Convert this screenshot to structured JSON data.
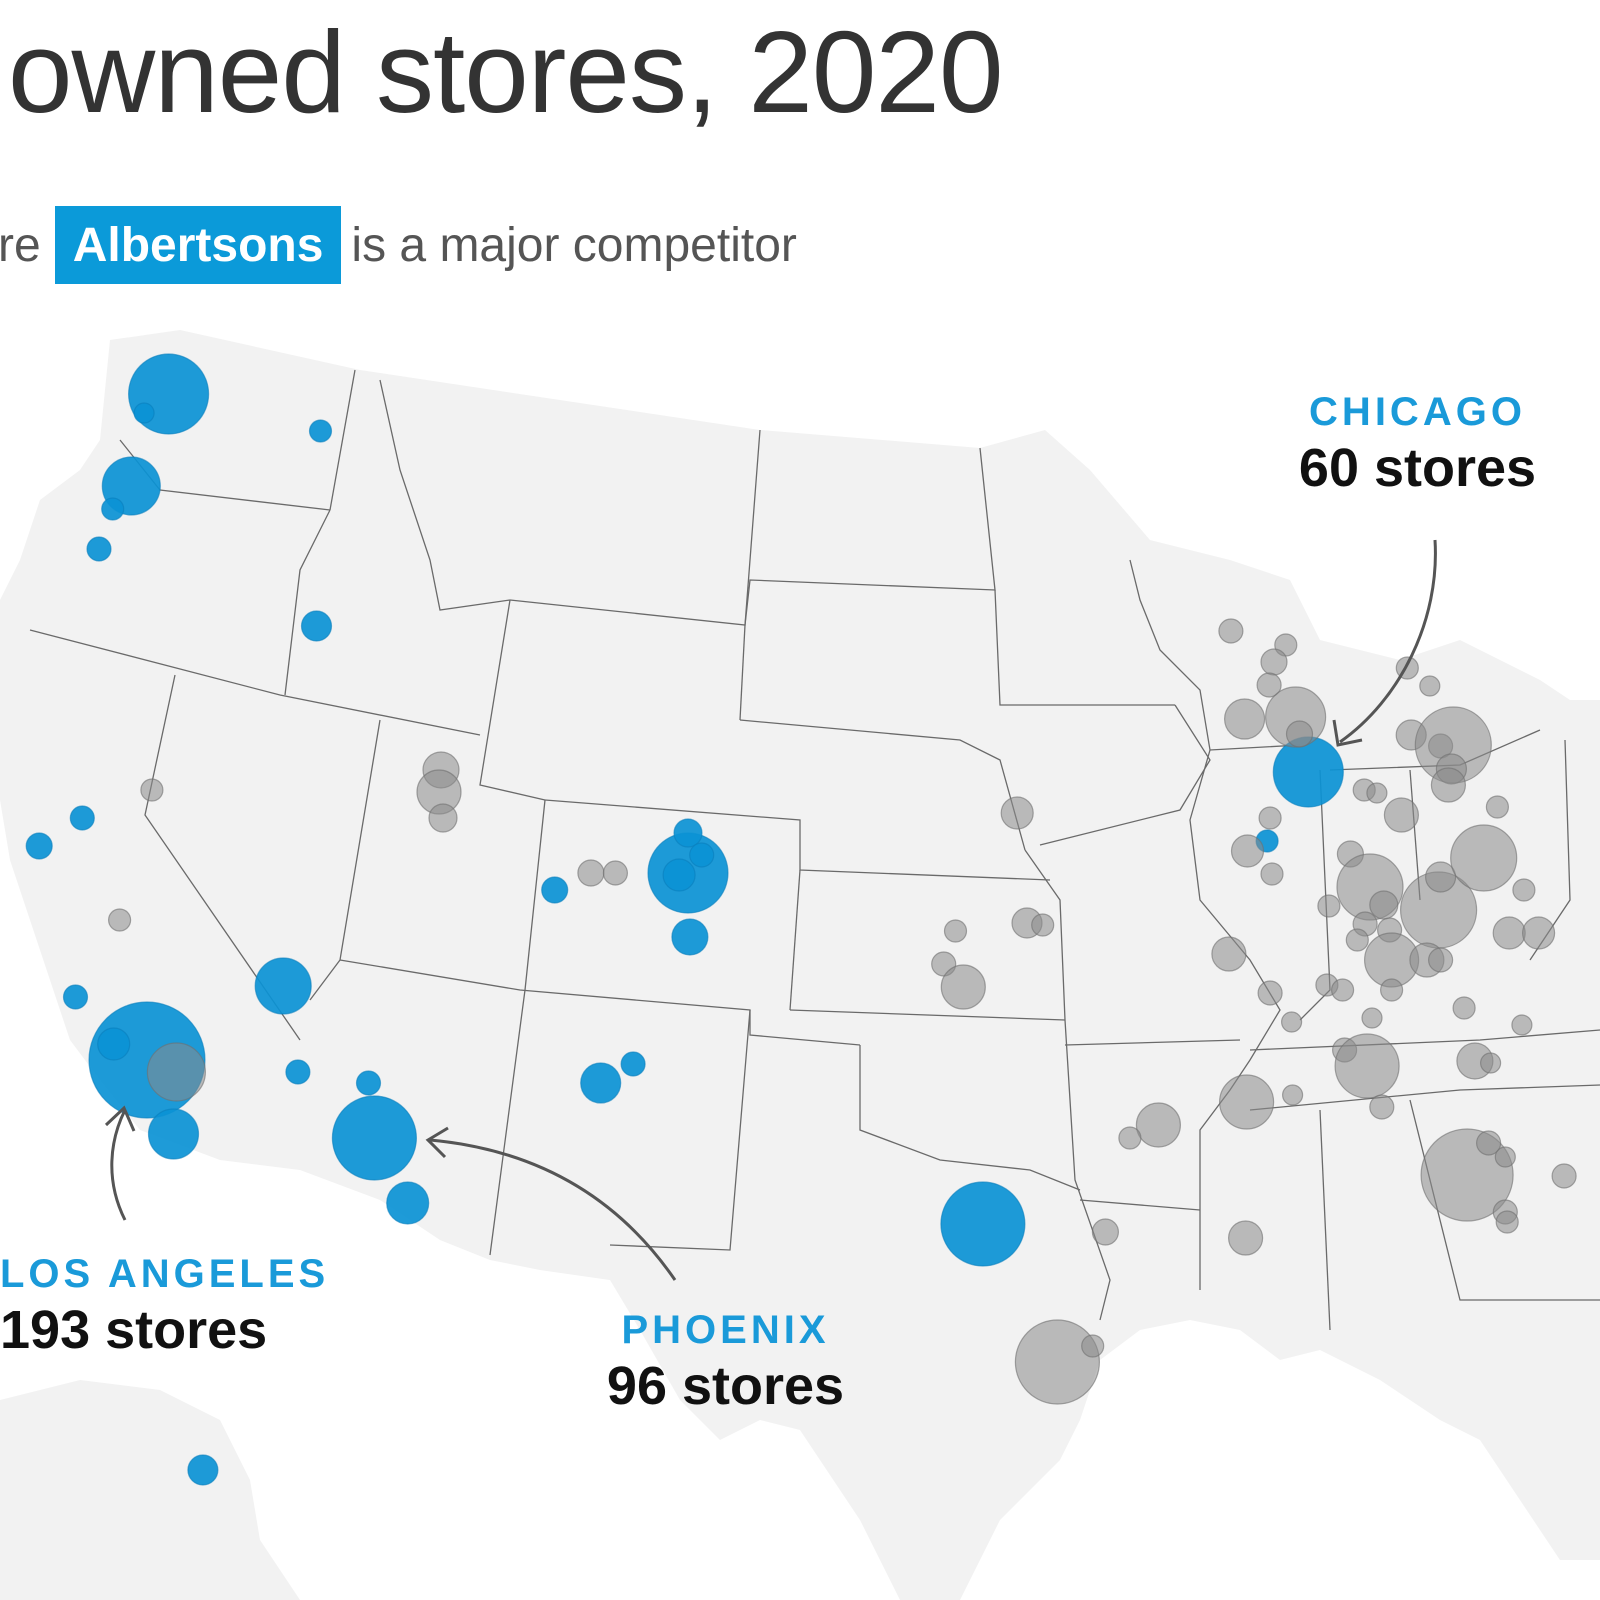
{
  "title": "owned stores, 2020",
  "subtitle": {
    "before": "re",
    "highlight": "Albertsons",
    "after": "is a major competitor"
  },
  "colors": {
    "albertsons": "#0b93d5",
    "other": "#8a8a8a",
    "land": "#f2f2f2",
    "borders": "#6a6a6a",
    "label_city": "#1a9ad9"
  },
  "callouts": {
    "chicago": {
      "name": "CHICAGO",
      "count": "60 stores"
    },
    "los_angeles": {
      "name": "LOS ANGELES",
      "count": "193 stores"
    },
    "phoenix": {
      "name": "PHOENIX",
      "count": "96 stores"
    }
  }
}
